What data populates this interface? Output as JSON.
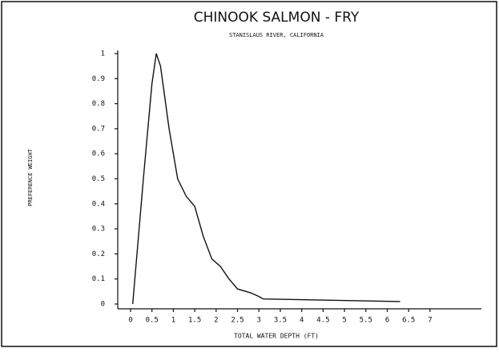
{
  "chart_data": {
    "type": "line",
    "title": "CHINOOK SALMON - FRY",
    "subtitle": "STANISLAUS RIVER, CALIFORNIA",
    "x_label": "TOTAL WATER DEPTH (FT)",
    "y_label": "PREFERENCE WEIGHT",
    "series": [
      {
        "name": "fry",
        "color": "#111111",
        "x": [
          0.05,
          0.3,
          0.5,
          0.6,
          0.7,
          0.9,
          1.1,
          1.3,
          1.5,
          1.7,
          1.9,
          2.1,
          2.3,
          2.5,
          2.8,
          3.0,
          3.1,
          6.3
        ],
        "values": [
          0,
          0.5,
          0.88,
          1.0,
          0.95,
          0.7,
          0.5,
          0.43,
          0.39,
          0.27,
          0.18,
          0.15,
          0.1,
          0.06,
          0.045,
          0.03,
          0.02,
          0.01
        ]
      }
    ],
    "xlim": [
      -0.3,
      8.2
    ],
    "xticks": [
      0,
      0.5,
      1,
      1.5,
      2,
      2.5,
      3,
      3.5,
      4,
      4.5,
      5,
      5.5,
      6,
      6.5,
      7
    ],
    "ylim": [
      0,
      1
    ],
    "yticks": [
      0,
      0.1,
      0.2,
      0.3,
      0.4,
      0.5,
      0.6,
      0.7,
      0.8,
      0.9,
      1
    ],
    "grid": false
  }
}
